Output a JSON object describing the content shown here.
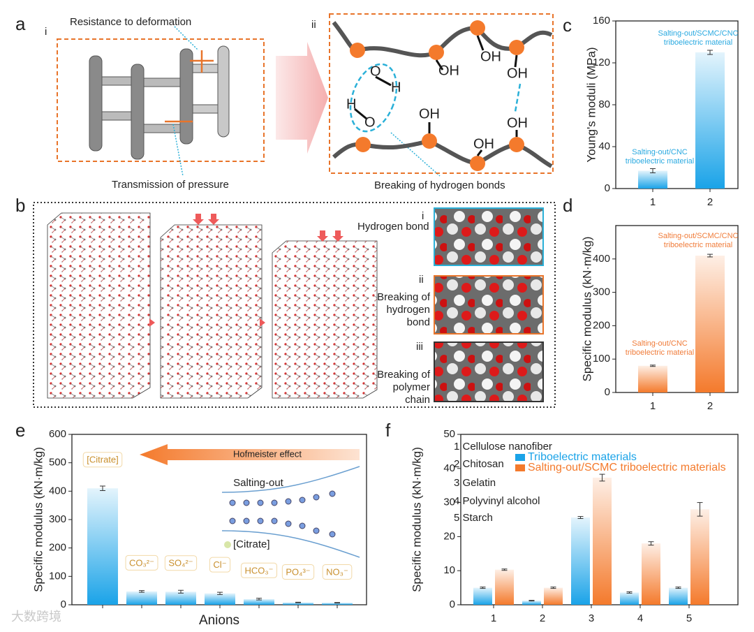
{
  "panel_labels": [
    "a",
    "b",
    "c",
    "d",
    "e",
    "f"
  ],
  "panel_a": {
    "i": "i",
    "ii": "ii",
    "top_label": "Resistance to deformation",
    "bottom_label": "Transmission of pressure",
    "right_label": "Breaking of hydrogen bonds",
    "atoms": [
      "O",
      "H",
      "H",
      "O",
      "OH",
      "OH",
      "OH",
      "OH",
      "OH",
      "OH"
    ]
  },
  "panel_b": {
    "insets": [
      {
        "number": "i",
        "label": [
          "Hydrogen bond"
        ]
      },
      {
        "number": "ii",
        "label": [
          "Breaking of",
          "hydrogen",
          "bond"
        ]
      },
      {
        "number": "iii",
        "label": [
          "Breaking of",
          "polymer",
          "chain"
        ]
      }
    ]
  },
  "watermark": "大数跨境",
  "chart_data": [
    {
      "type": "bar",
      "ylabel": "Young's moduli (MPa)",
      "categories": [
        "1",
        "2"
      ],
      "values": [
        17,
        130
      ],
      "errors": [
        2,
        2
      ],
      "color": "#1aa3e8",
      "ylim": [
        0,
        160
      ],
      "yticks": [
        0,
        40,
        80,
        120,
        160
      ],
      "annotations": [
        [
          "Salting-out/CNC",
          "triboelectric material"
        ],
        [
          "Salting-out/SCMC/CNC",
          "triboelectric material"
        ]
      ],
      "annotation_color": "#29a9e0"
    },
    {
      "type": "bar",
      "ylabel": "Specific modulus (kN·m/kg)",
      "categories": [
        "1",
        "2"
      ],
      "values": [
        80,
        410
      ],
      "errors": [
        2,
        4
      ],
      "color": "#f47a2c",
      "ylim": [
        0,
        500
      ],
      "yticks": [
        0,
        100,
        200,
        300,
        400
      ],
      "annotations": [
        [
          "Salting-out/CNC",
          "triboelectric material"
        ],
        [
          "Salting-out/SCMC/CNC",
          "triboelectric material"
        ]
      ],
      "annotation_color": "#f07c3a"
    },
    {
      "type": "bar",
      "ylabel": "Specific modulus (kN·m/kg)",
      "xlabel": "Anions",
      "categories": [
        "[Citrate]",
        "CO₃²⁻",
        "SO₄²⁻",
        "Cl⁻",
        "HCO₃⁻",
        "PO₄³⁻",
        "NO₃⁻"
      ],
      "values": [
        410,
        47,
        46,
        40,
        20,
        8,
        7
      ],
      "errors": [
        8,
        3,
        5,
        4,
        3,
        1,
        1
      ],
      "color": "#1aa3e8",
      "ylim": [
        0,
        600
      ],
      "yticks": [
        0,
        100,
        200,
        300,
        400,
        500,
        600
      ],
      "annotations": [
        [
          "Hofmeister effect"
        ],
        [
          "Salting-out"
        ],
        [
          "[Citrate]"
        ]
      ],
      "annotation_color": "#222222"
    },
    {
      "type": "bar",
      "ylabel": "Specific modulus (kN·m/kg)",
      "categories": [
        "1",
        "2",
        "3",
        "4",
        "5"
      ],
      "series": [
        {
          "name": "Triboelectric materials",
          "color": "#1aa3e8",
          "values": [
            5,
            1.2,
            25.6,
            3.6,
            5
          ],
          "errors": [
            0.2,
            0.1,
            0.3,
            0.2,
            0.2
          ]
        },
        {
          "name": "Salting-out/SCMC triboelectric materials",
          "color": "#f47a2c",
          "values": [
            10.3,
            5,
            37.3,
            18,
            28
          ],
          "errors": [
            0.2,
            0.2,
            1,
            0.5,
            2
          ]
        }
      ],
      "ylim": [
        0,
        50
      ],
      "yticks": [
        0,
        10,
        20,
        30,
        40,
        50
      ],
      "annotations": [
        [
          "1 Cellulose nanofiber"
        ],
        [
          "2 Chitosan"
        ],
        [
          "3 Gelatin"
        ],
        [
          "4 Polyvinyl alcohol"
        ],
        [
          "5 Starch"
        ]
      ],
      "annotation_color": "#222222"
    }
  ]
}
